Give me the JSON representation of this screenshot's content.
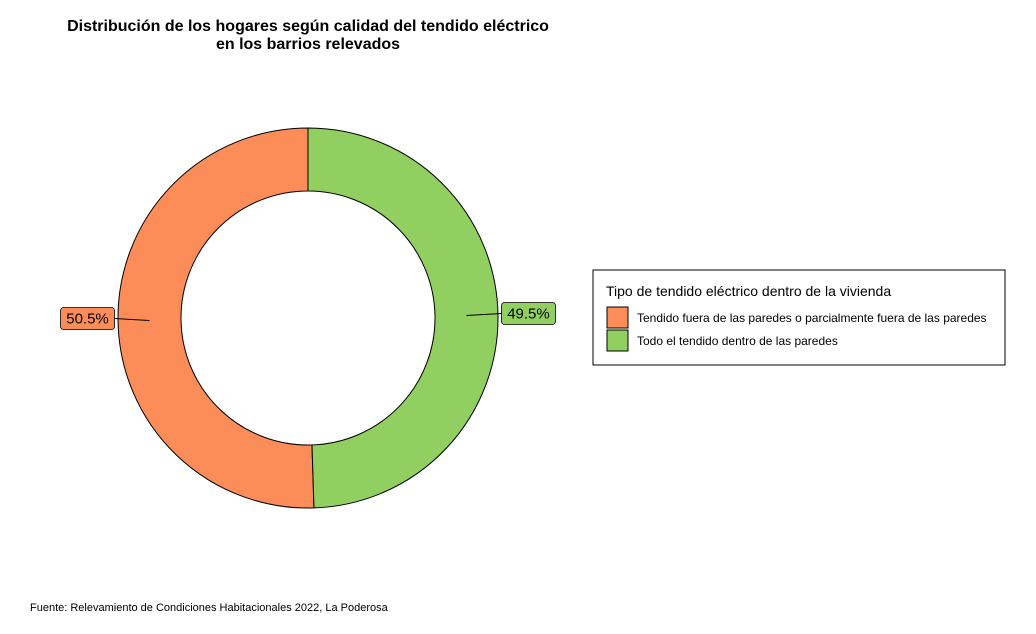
{
  "chart_data": {
    "type": "pie",
    "title_lines": [
      "Distribución de los hogares según calidad del tendido eléctrico",
      "en los barrios relevados"
    ],
    "slices": [
      {
        "name": "Tendido fuera de las paredes o parcialmente fuera de las paredes",
        "value": 50.5,
        "label": "50.5%",
        "color": "#FC8D59"
      },
      {
        "name": "Todo el tendido dentro de las paredes",
        "value": 49.5,
        "label": "49.5%",
        "color": "#91CF60"
      }
    ],
    "legend": {
      "title": "Tipo de tendido eléctrico dentro de la vivienda",
      "position": "right"
    },
    "caption": "Fuente: Relevamiento de Condiciones Habitacionales 2022, La Poderosa"
  }
}
